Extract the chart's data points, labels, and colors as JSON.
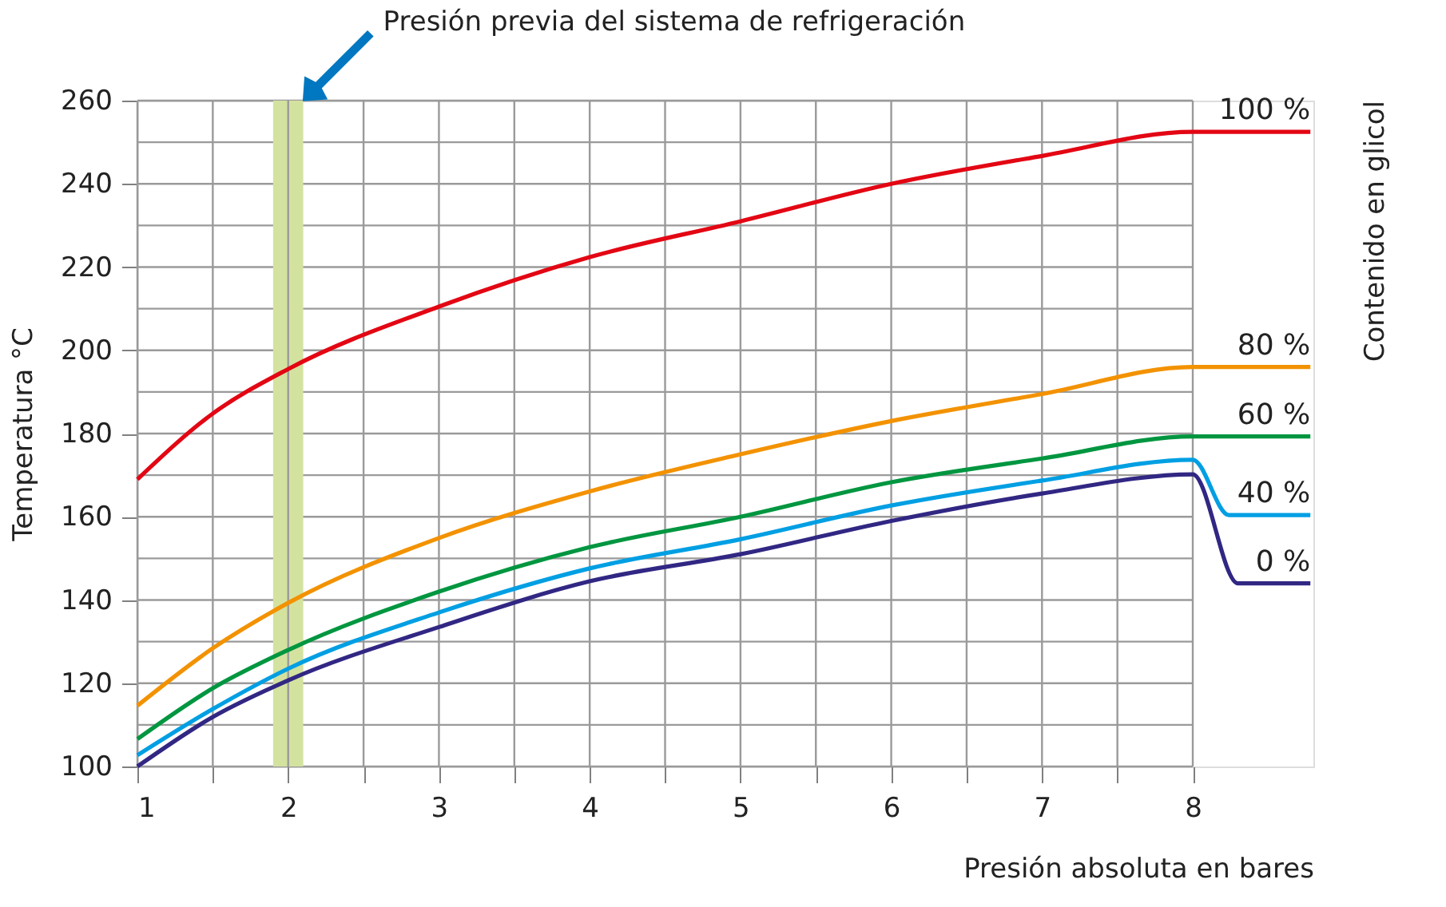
{
  "chart_data": {
    "type": "line",
    "xlabel": "Presión absoluta en bares",
    "ylabel": "Temperatura °C",
    "legend_title": "Contenido en glicol",
    "xlim": [
      1,
      8.8
    ],
    "ylim": [
      100,
      260
    ],
    "xticks": [
      1,
      {
        "value": 1.5,
        "label": null
      },
      2,
      {
        "value": 2.5,
        "label": null
      },
      3,
      {
        "value": 3.5,
        "label": null
      },
      4,
      {
        "value": 4.5,
        "label": null
      },
      5,
      {
        "value": 5.5,
        "label": null
      },
      6,
      {
        "value": 6.5,
        "label": null
      },
      7,
      {
        "value": 7.5,
        "label": null
      },
      8
    ],
    "yticks": [
      100,
      {
        "value": 110,
        "label": null
      },
      120,
      {
        "value": 130,
        "label": null
      },
      140,
      {
        "value": 150,
        "label": null
      },
      160,
      {
        "value": 170,
        "label": null
      },
      180,
      {
        "value": 190,
        "label": null
      },
      200,
      {
        "value": 210,
        "label": null
      },
      220,
      {
        "value": 230,
        "label": null
      },
      240,
      {
        "value": 250,
        "label": null
      },
      260
    ],
    "grid": true,
    "line_style": "solid",
    "marker": "none",
    "bands": [
      {
        "axis": "x",
        "from": 1.9,
        "to": 2.1,
        "color": "#d4e2a0"
      }
    ],
    "annotations": [
      "Presión previa del sistema de refrigeración"
    ],
    "series": [
      {
        "name": "100 %",
        "color": "#e30613",
        "x": [
          1,
          1.5,
          2,
          3,
          4,
          5,
          6,
          7,
          8,
          8.78
        ],
        "values": [
          169,
          184.8,
          195.5,
          210.5,
          222.4,
          231,
          240,
          246.7,
          252.5,
          252.5
        ]
      },
      {
        "name": "80 %",
        "color": "#f39200",
        "x": [
          1,
          1.5,
          2,
          3,
          4,
          5,
          6,
          7,
          8,
          8.78
        ],
        "values": [
          114.6,
          128.4,
          139.3,
          154.9,
          166.1,
          175,
          183,
          189.5,
          196,
          196
        ]
      },
      {
        "name": "60 %",
        "color": "#009640",
        "x": [
          1,
          1.5,
          2,
          3,
          4,
          5,
          6,
          7,
          8,
          8.78
        ],
        "values": [
          106.6,
          118.8,
          128,
          142,
          152.7,
          160,
          168.3,
          174,
          179.3,
          179.3
        ]
      },
      {
        "name": "40 %",
        "color": "#009fe3",
        "x": [
          1,
          1.5,
          2,
          3,
          4,
          5,
          6,
          7,
          8,
          8.24,
          8.78
        ],
        "values": [
          102.7,
          113.8,
          123.5,
          137,
          147.6,
          154.6,
          162.7,
          168.7,
          173.7,
          160.4,
          160.4
        ]
      },
      {
        "name": "0 %",
        "color": "#312783",
        "x": [
          1,
          1.5,
          2,
          3,
          4,
          5,
          6,
          7,
          8,
          8.3,
          8.78
        ],
        "values": [
          100,
          111.9,
          120.7,
          133.5,
          144.5,
          151,
          159,
          165.6,
          170.2,
          144,
          144
        ]
      }
    ]
  }
}
